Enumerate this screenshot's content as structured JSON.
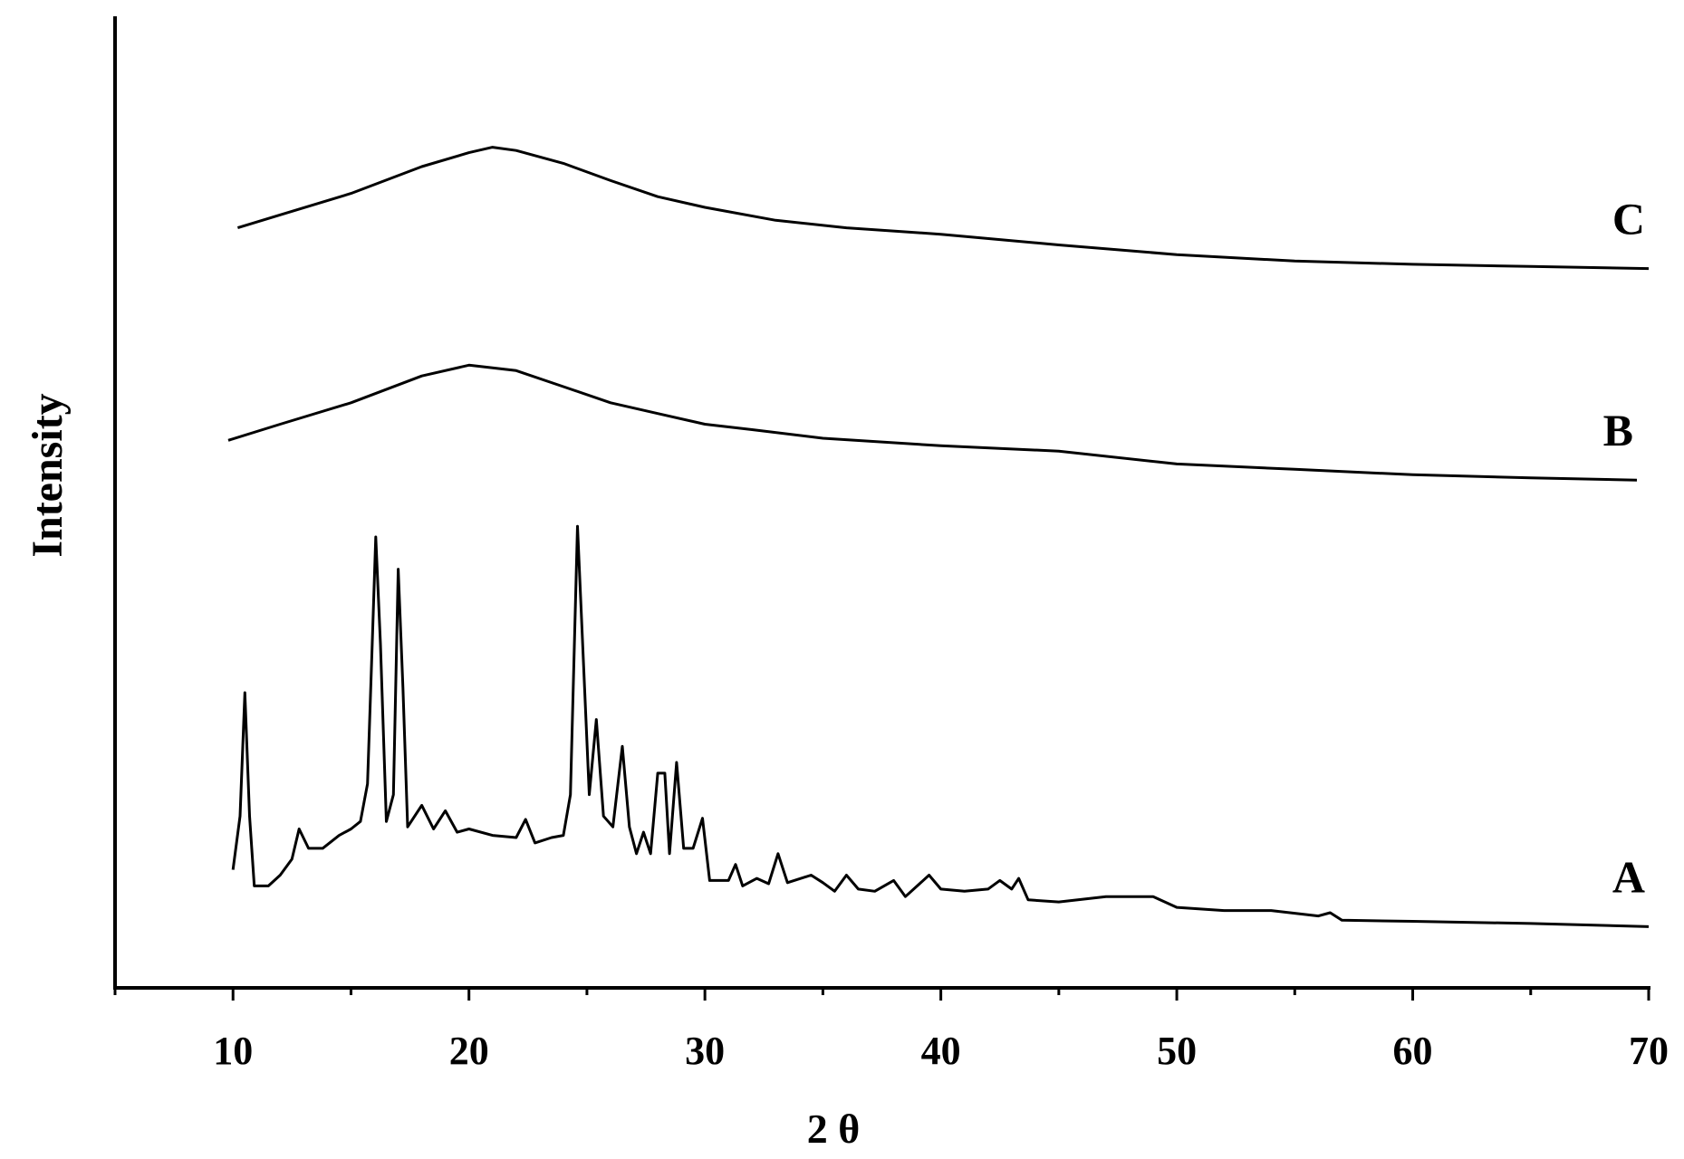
{
  "chart_data": {
    "type": "line",
    "x_label": "2 θ",
    "y_label": "Intensity",
    "xlim": [
      5,
      70
    ],
    "ylim": [
      0,
      905
    ],
    "xticks": [
      10,
      20,
      30,
      40,
      50,
      60,
      70
    ],
    "xminorticks": [
      5,
      15,
      25,
      35,
      45,
      55,
      65
    ],
    "series": [
      {
        "name": "A",
        "color": "#000000",
        "x": [
          10.0,
          10.3,
          10.5,
          10.7,
          10.9,
          11.5,
          12.0,
          12.5,
          12.8,
          13.2,
          13.8,
          14.5,
          15.0,
          15.4,
          15.7,
          15.9,
          16.05,
          16.25,
          16.5,
          16.8,
          17.0,
          17.2,
          17.4,
          18.0,
          18.5,
          19.0,
          19.5,
          20.0,
          21.0,
          22.0,
          22.4,
          22.8,
          23.5,
          24.0,
          24.3,
          24.6,
          24.9,
          25.1,
          25.4,
          25.7,
          26.1,
          26.5,
          26.8,
          27.1,
          27.4,
          27.7,
          28.0,
          28.3,
          28.5,
          28.8,
          29.1,
          29.5,
          29.9,
          30.2,
          31.0,
          31.3,
          31.6,
          32.2,
          32.7,
          33.1,
          33.5,
          34.5,
          35.0,
          35.5,
          36.0,
          36.5,
          37.2,
          38.0,
          38.5,
          39.5,
          40.0,
          41,
          42,
          42.5,
          43,
          43.3,
          43.7,
          45,
          47,
          49,
          50,
          52,
          54,
          56,
          56.5,
          57,
          60,
          65,
          70
        ],
        "values": [
          110,
          160,
          275,
          160,
          95,
          95,
          105,
          120,
          148,
          130,
          130,
          142,
          148,
          155,
          190,
          320,
          420,
          320,
          155,
          180,
          390,
          280,
          150,
          170,
          148,
          165,
          145,
          148,
          142,
          140,
          157,
          135,
          140,
          142,
          180,
          430,
          280,
          180,
          250,
          160,
          150,
          225,
          150,
          125,
          145,
          125,
          200,
          200,
          125,
          210,
          130,
          130,
          158,
          100,
          100,
          115,
          95,
          102,
          97,
          125,
          98,
          105,
          98,
          90,
          105,
          92,
          90,
          100,
          85,
          105,
          92,
          90,
          92,
          100,
          92,
          102,
          82,
          80,
          85,
          85,
          75,
          72,
          72,
          67,
          70,
          63,
          62,
          60,
          57
        ]
      },
      {
        "name": "B",
        "color": "#000000",
        "x": [
          9.8,
          12,
          15,
          18,
          20,
          22,
          24,
          26,
          28,
          30,
          32,
          35,
          40,
          45,
          50,
          55,
          60,
          65,
          69.5
        ],
        "values": [
          510,
          525,
          545,
          570,
          580,
          575,
          560,
          545,
          535,
          525,
          520,
          512,
          505,
          500,
          488,
          483,
          478,
          475,
          473
        ]
      },
      {
        "name": "C",
        "color": "#000000",
        "x": [
          10.2,
          12,
          15,
          18,
          20,
          21,
          22,
          24,
          26,
          28,
          30,
          33,
          36,
          40,
          45,
          50,
          55,
          60,
          65,
          70
        ],
        "values": [
          708,
          720,
          740,
          765,
          778,
          783,
          780,
          768,
          752,
          737,
          727,
          715,
          708,
          702,
          692,
          683,
          677,
          674,
          672,
          670
        ]
      }
    ]
  }
}
